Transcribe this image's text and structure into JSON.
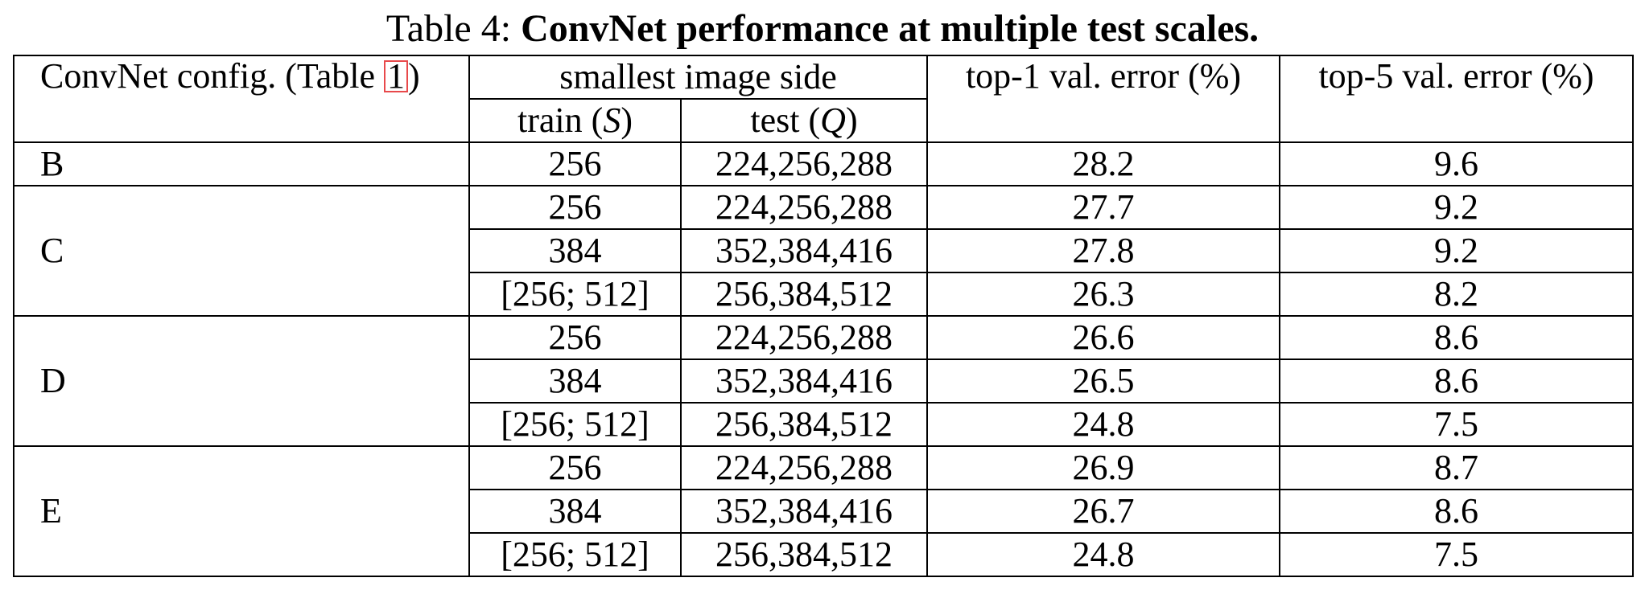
{
  "caption": {
    "prefix": "Table 4: ",
    "title": "ConvNet performance at multiple test scales."
  },
  "header": {
    "config_prefix": "ConvNet config. (Table ",
    "config_ref": "1",
    "config_suffix": ")",
    "smallest_side": "smallest image side",
    "train_label": "train (",
    "train_symbol": "S",
    "train_close": ")",
    "test_label": "test (",
    "test_symbol": "Q",
    "test_close": ")",
    "top1": "top-1 val. error (%)",
    "top5": "top-5 val. error (%)"
  },
  "groups": [
    {
      "config": "B",
      "rows": [
        {
          "train": "256",
          "test": "224,256,288",
          "top1": "28.2",
          "top5": "9.6",
          "best": false
        }
      ]
    },
    {
      "config": "C",
      "rows": [
        {
          "train": "256",
          "test": "224,256,288",
          "top1": "27.7",
          "top5": "9.2",
          "best": false
        },
        {
          "train": "384",
          "test": "352,384,416",
          "top1": "27.8",
          "top5": "9.2",
          "best": false
        },
        {
          "train": "[256; 512]",
          "test": "256,384,512",
          "top1": "26.3",
          "top5": "8.2",
          "best": false
        }
      ]
    },
    {
      "config": "D",
      "rows": [
        {
          "train": "256",
          "test": "224,256,288",
          "top1": "26.6",
          "top5": "8.6",
          "best": false
        },
        {
          "train": "384",
          "test": "352,384,416",
          "top1": "26.5",
          "top5": "8.6",
          "best": false
        },
        {
          "train": "[256; 512]",
          "test": "256,384,512",
          "top1": "24.8",
          "top5": "7.5",
          "best": true
        }
      ]
    },
    {
      "config": "E",
      "rows": [
        {
          "train": "256",
          "test": "224,256,288",
          "top1": "26.9",
          "top5": "8.7",
          "best": false
        },
        {
          "train": "384",
          "test": "352,384,416",
          "top1": "26.7",
          "top5": "8.6",
          "best": false
        },
        {
          "train": "[256; 512]",
          "test": "256,384,512",
          "top1": "24.8",
          "top5": "7.5",
          "best": true
        }
      ]
    }
  ],
  "colors": {
    "text": "#000000",
    "rule": "#000000",
    "reference_box": "#e8494b"
  }
}
